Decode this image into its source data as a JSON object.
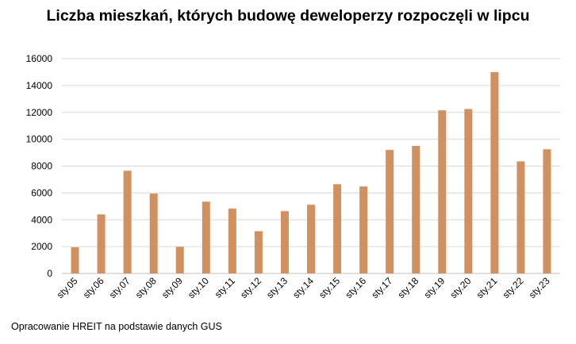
{
  "chart_data": {
    "type": "bar",
    "title": "Liczba mieszkań, których budowę deweloperzy rozpoczęli w lipcu",
    "categories": [
      "sty.05",
      "sty.06",
      "sty.07",
      "sty.08",
      "sty.09",
      "sty.10",
      "sty.11",
      "sty.12",
      "sty.13",
      "sty.14",
      "sty.15",
      "sty.16",
      "sty.17",
      "sty.18",
      "sty.19",
      "sty.20",
      "sty.21",
      "sty.22",
      "sty.23"
    ],
    "values": [
      1950,
      4400,
      7650,
      5950,
      1980,
      5350,
      4830,
      3150,
      4640,
      5120,
      6650,
      6480,
      9200,
      9500,
      12150,
      12250,
      15000,
      8350,
      9250
    ],
    "xlabel": "",
    "ylabel": "",
    "ylim": [
      0,
      16000
    ],
    "yticks": [
      0,
      2000,
      4000,
      6000,
      8000,
      10000,
      12000,
      14000,
      16000
    ],
    "grid": true,
    "bar_color": "#D09060",
    "grid_color": "#D9D9D9"
  },
  "footer": {
    "source": "Opracowanie HREIT na podstawie danych GUS"
  }
}
